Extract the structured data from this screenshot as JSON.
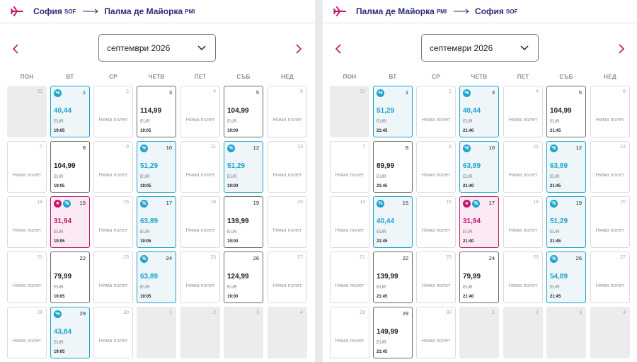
{
  "icons": {
    "plane": "plane-icon",
    "arrow": "route-arrow-icon",
    "prev": "chevron-left-icon",
    "next": "chevron-right-icon",
    "dropdown": "chevron-down-icon",
    "discount": "percent-badge-icon",
    "promo": "star-badge-icon"
  },
  "colors": {
    "brand": "#c2156b",
    "discount": "#1aa3cc",
    "route_text": "#2c2c7a"
  },
  "weekdays": [
    "ПОН",
    "ВТ",
    "СР",
    "ЧЕТВ",
    "ПЕТ",
    "СЪБ",
    "НЕД"
  ],
  "no_flight_label": "Няма полет",
  "currency": "EUR",
  "panels": [
    {
      "from_city": "София",
      "from_code": "SOF",
      "to_city": "Палма де Майорка",
      "to_code": "PMI",
      "month": "септември 2026",
      "days": [
        {
          "d": "31",
          "t": "empty"
        },
        {
          "d": "1",
          "t": "flight",
          "price": "40,44",
          "time": "19:05",
          "badges": [
            "pct"
          ]
        },
        {
          "d": "2",
          "t": "none"
        },
        {
          "d": "3",
          "t": "flight",
          "price": "114,99",
          "time": "19:05",
          "badges": []
        },
        {
          "d": "4",
          "t": "none"
        },
        {
          "d": "5",
          "t": "flight",
          "price": "104,99",
          "time": "19:00",
          "badges": []
        },
        {
          "d": "6",
          "t": "none"
        },
        {
          "d": "7",
          "t": "none"
        },
        {
          "d": "8",
          "t": "flight",
          "price": "104,99",
          "time": "19:05",
          "badges": []
        },
        {
          "d": "9",
          "t": "none"
        },
        {
          "d": "10",
          "t": "flight",
          "price": "51,29",
          "time": "19:05",
          "badges": [
            "pct"
          ]
        },
        {
          "d": "11",
          "t": "none"
        },
        {
          "d": "12",
          "t": "flight",
          "price": "51,29",
          "time": "19:00",
          "badges": [
            "pct"
          ]
        },
        {
          "d": "13",
          "t": "none"
        },
        {
          "d": "14",
          "t": "none"
        },
        {
          "d": "15",
          "t": "flight",
          "price": "31,94",
          "time": "19:05",
          "badges": [
            "star",
            "pct"
          ]
        },
        {
          "d": "16",
          "t": "none"
        },
        {
          "d": "17",
          "t": "flight",
          "price": "63,89",
          "time": "19:05",
          "badges": [
            "pct"
          ]
        },
        {
          "d": "18",
          "t": "none"
        },
        {
          "d": "19",
          "t": "flight",
          "price": "139,99",
          "time": "19:00",
          "badges": []
        },
        {
          "d": "20",
          "t": "none"
        },
        {
          "d": "21",
          "t": "none"
        },
        {
          "d": "22",
          "t": "flight",
          "price": "79,99",
          "time": "19:05",
          "badges": []
        },
        {
          "d": "23",
          "t": "none"
        },
        {
          "d": "24",
          "t": "flight",
          "price": "63,89",
          "time": "19:05",
          "badges": [
            "pct"
          ]
        },
        {
          "d": "25",
          "t": "none"
        },
        {
          "d": "26",
          "t": "flight",
          "price": "124,99",
          "time": "19:00",
          "badges": []
        },
        {
          "d": "27",
          "t": "none"
        },
        {
          "d": "28",
          "t": "none"
        },
        {
          "d": "29",
          "t": "flight",
          "price": "43,84",
          "time": "19:05",
          "badges": [
            "pct"
          ]
        },
        {
          "d": "30",
          "t": "none"
        },
        {
          "d": "1",
          "t": "empty"
        },
        {
          "d": "2",
          "t": "empty"
        },
        {
          "d": "3",
          "t": "empty"
        },
        {
          "d": "4",
          "t": "empty"
        }
      ]
    },
    {
      "from_city": "Палма де Майорка",
      "from_code": "PMI",
      "to_city": "София",
      "to_code": "SOF",
      "month": "септември 2026",
      "days": [
        {
          "d": "31",
          "t": "empty"
        },
        {
          "d": "1",
          "t": "flight",
          "price": "51,29",
          "time": "21:45",
          "badges": [
            "pct"
          ]
        },
        {
          "d": "2",
          "t": "none"
        },
        {
          "d": "3",
          "t": "flight",
          "price": "40,44",
          "time": "21:40",
          "badges": [
            "pct"
          ]
        },
        {
          "d": "4",
          "t": "none"
        },
        {
          "d": "5",
          "t": "flight",
          "price": "104,99",
          "time": "21:45",
          "badges": []
        },
        {
          "d": "6",
          "t": "none"
        },
        {
          "d": "7",
          "t": "none"
        },
        {
          "d": "8",
          "t": "flight",
          "price": "89,99",
          "time": "21:45",
          "badges": []
        },
        {
          "d": "9",
          "t": "none"
        },
        {
          "d": "10",
          "t": "flight",
          "price": "63,89",
          "time": "21:40",
          "badges": [
            "pct"
          ]
        },
        {
          "d": "11",
          "t": "none"
        },
        {
          "d": "12",
          "t": "flight",
          "price": "63,89",
          "time": "21:45",
          "badges": [
            "pct"
          ]
        },
        {
          "d": "13",
          "t": "none"
        },
        {
          "d": "14",
          "t": "none"
        },
        {
          "d": "15",
          "t": "flight",
          "price": "40,44",
          "time": "21:45",
          "badges": [
            "pct"
          ]
        },
        {
          "d": "16",
          "t": "none"
        },
        {
          "d": "17",
          "t": "flight",
          "price": "31,94",
          "time": "21:40",
          "badges": [
            "star",
            "pct"
          ]
        },
        {
          "d": "18",
          "t": "none"
        },
        {
          "d": "19",
          "t": "flight",
          "price": "51,29",
          "time": "21:45",
          "badges": [
            "pct"
          ]
        },
        {
          "d": "20",
          "t": "none"
        },
        {
          "d": "21",
          "t": "none"
        },
        {
          "d": "22",
          "t": "flight",
          "price": "139,99",
          "time": "21:45",
          "badges": []
        },
        {
          "d": "23",
          "t": "none"
        },
        {
          "d": "24",
          "t": "flight",
          "price": "79,99",
          "time": "21:40",
          "badges": []
        },
        {
          "d": "25",
          "t": "none"
        },
        {
          "d": "26",
          "t": "flight",
          "price": "54,89",
          "time": "21:45",
          "badges": [
            "pct"
          ]
        },
        {
          "d": "27",
          "t": "none"
        },
        {
          "d": "28",
          "t": "none"
        },
        {
          "d": "29",
          "t": "flight",
          "price": "149,99",
          "time": "21:45",
          "badges": []
        },
        {
          "d": "30",
          "t": "none"
        },
        {
          "d": "1",
          "t": "empty"
        },
        {
          "d": "2",
          "t": "empty"
        },
        {
          "d": "3",
          "t": "empty"
        },
        {
          "d": "4",
          "t": "empty"
        }
      ]
    }
  ]
}
